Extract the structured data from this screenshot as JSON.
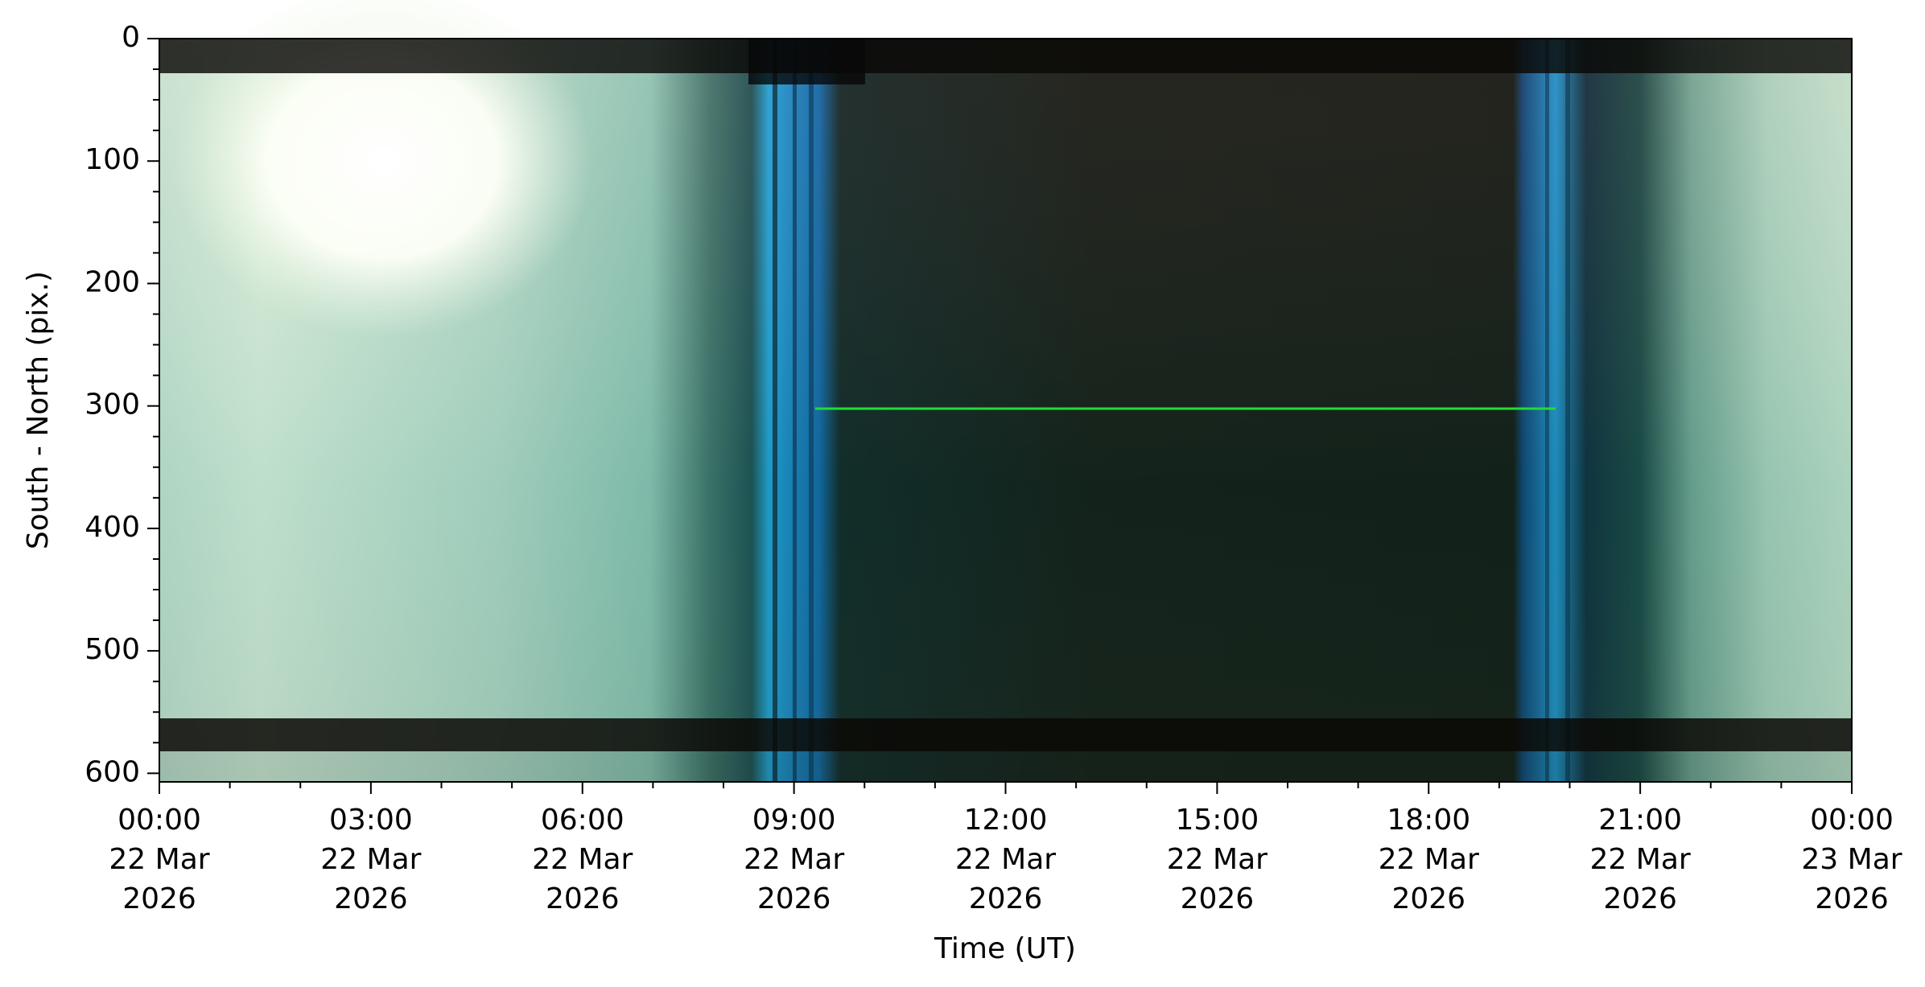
{
  "chart_data": {
    "type": "keogram",
    "xlabel": "Time (UT)",
    "ylabel": "South - North (pix.)",
    "xlim": [
      0,
      24
    ],
    "xticks": [
      {
        "value": 0,
        "label": "00:00\n22 Mar\n2026"
      },
      {
        "value": 3,
        "label": "03:00\n22 Mar\n2026"
      },
      {
        "value": 6,
        "label": "06:00\n22 Mar\n2026"
      },
      {
        "value": 9,
        "label": "09:00\n22 Mar\n2026"
      },
      {
        "value": 12,
        "label": "12:00\n22 Mar\n2026"
      },
      {
        "value": 15,
        "label": "15:00\n22 Mar\n2026"
      },
      {
        "value": 18,
        "label": "18:00\n22 Mar\n2026"
      },
      {
        "value": 21,
        "label": "21:00\n22 Mar\n2026"
      },
      {
        "value": 24,
        "label": "00:00\n23 Mar\n2026"
      }
    ],
    "xminorticks": [
      1,
      2,
      4,
      5,
      7,
      8,
      10,
      11,
      13,
      14,
      16,
      17,
      19,
      20,
      22,
      23
    ],
    "ylim": [
      607,
      0
    ],
    "yticks": [
      0,
      100,
      200,
      300,
      400,
      500,
      600
    ],
    "yminorticks": [
      25,
      50,
      75,
      125,
      150,
      175,
      225,
      250,
      275,
      325,
      350,
      375,
      425,
      450,
      475,
      525,
      550,
      575
    ]
  }
}
